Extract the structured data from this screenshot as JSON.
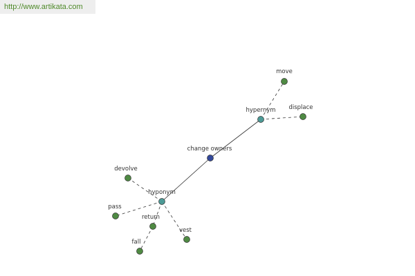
{
  "header": {
    "url": "http://www.artikata.com"
  },
  "nodes": [
    {
      "label": "change owners"
    },
    {
      "label": "hypernym"
    },
    {
      "label": "hyponym"
    },
    {
      "label": "move"
    },
    {
      "label": "displace"
    },
    {
      "label": "devolve"
    },
    {
      "label": "pass"
    },
    {
      "label": "return"
    },
    {
      "label": "vest"
    },
    {
      "label": "fall"
    }
  ]
}
